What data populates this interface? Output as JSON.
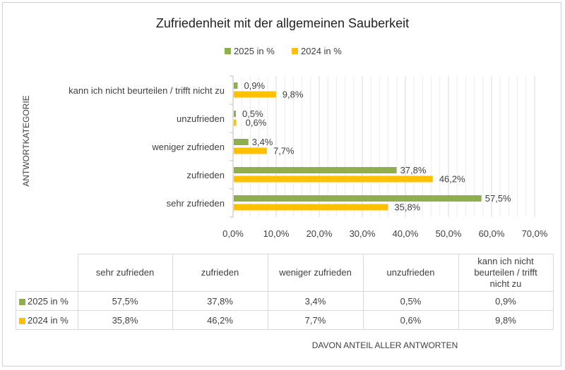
{
  "chart_data": {
    "type": "bar",
    "orientation": "horizontal",
    "title": "Zufriedenheit mit der allgemeinen Sauberkeit",
    "ylabel": "ANTWORTKATEGORIE",
    "xlabel": "DAVON ANTEIL ALLER ANTWORTEN",
    "categories": [
      "sehr zufrieden",
      "zufrieden",
      "weniger zufrieden",
      "unzufrieden",
      "kann ich nicht beurteilen / trifft nicht zu"
    ],
    "table_headers": [
      "sehr zufrieden",
      "zufrieden",
      "weniger zufrieden",
      "unzufrieden",
      "kann ich nicht beurteilen / trifft nicht zu"
    ],
    "series": [
      {
        "name": "2025 in %",
        "color": "#8faf4f",
        "values": [
          57.5,
          37.8,
          3.4,
          0.5,
          0.9
        ],
        "labels": [
          "57,5%",
          "37,8%",
          "3,4%",
          "0,5%",
          "0,9%"
        ]
      },
      {
        "name": "2024 in %",
        "color": "#ffc000",
        "values": [
          35.8,
          46.2,
          7.7,
          0.6,
          9.8
        ],
        "labels": [
          "35,8%",
          "46,2%",
          "7,7%",
          "0,6%",
          "9,8%"
        ]
      }
    ],
    "xlim": [
      0,
      70
    ],
    "xticks": [
      "0,0%",
      "10,0%",
      "20,0%",
      "30,0%",
      "40,0%",
      "50,0%",
      "60,0%",
      "70,0%"
    ],
    "grid": true,
    "legend": "top"
  }
}
